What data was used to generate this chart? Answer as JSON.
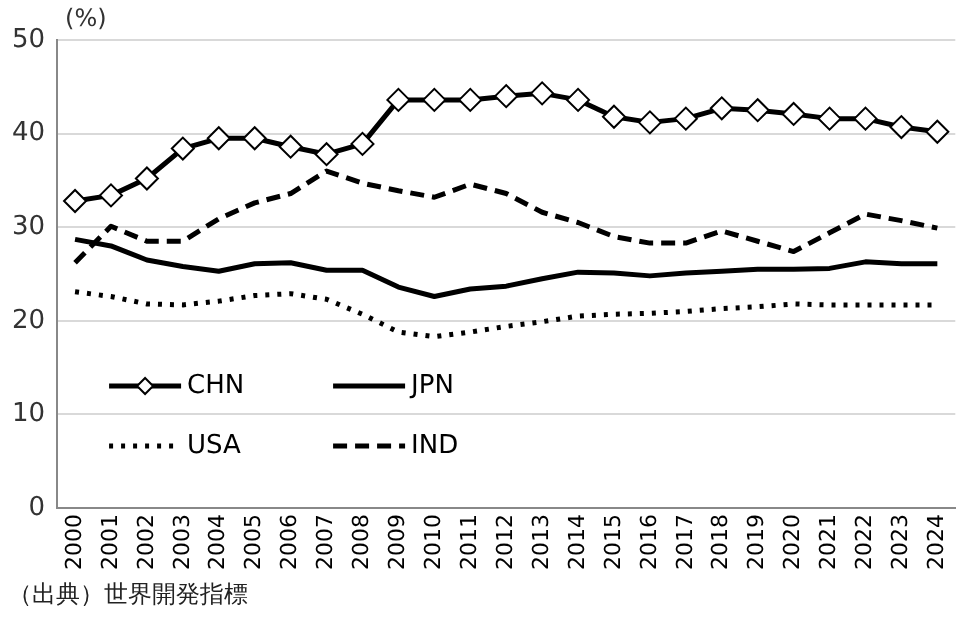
{
  "chart_data": {
    "type": "line",
    "ylabel": "(%)",
    "annotations": [
      "（出典）世界開発指標"
    ],
    "categories": [
      "2000",
      "2001",
      "2002",
      "2003",
      "2004",
      "2005",
      "2006",
      "2007",
      "2008",
      "2009",
      "2010",
      "2011",
      "2012",
      "2013",
      "2014",
      "2015",
      "2016",
      "2017",
      "2018",
      "2019",
      "2020",
      "2021",
      "2022",
      "2023",
      "2024"
    ],
    "ylim": [
      0,
      50
    ],
    "yticks": [
      0,
      10,
      20,
      30,
      40,
      50
    ],
    "grid": "y",
    "legend": "bottom left",
    "series": [
      {
        "name": "CHN",
        "color": "#000000",
        "marker": "diamond",
        "line_style": "solid",
        "values": [
          32.8,
          33.4,
          35.2,
          38.4,
          39.5,
          39.5,
          38.6,
          37.8,
          38.9,
          43.6,
          43.6,
          43.6,
          44.0,
          44.3,
          43.6,
          41.8,
          41.2,
          41.6,
          42.7,
          42.5,
          42.1,
          41.6,
          41.6,
          40.7,
          40.2
        ]
      },
      {
        "name": "JPN",
        "color": "#000000",
        "marker": "none",
        "line_style": "solid",
        "values": [
          28.7,
          28.0,
          26.5,
          25.8,
          25.3,
          26.1,
          26.2,
          25.4,
          25.4,
          23.6,
          22.6,
          23.4,
          23.7,
          24.5,
          25.2,
          25.1,
          24.8,
          25.1,
          25.3,
          25.5,
          25.5,
          25.6,
          26.3,
          26.1,
          26.1
        ]
      },
      {
        "name": "USA",
        "color": "#000000",
        "marker": "none",
        "line_style": "dotted",
        "values": [
          23.1,
          22.6,
          21.8,
          21.7,
          22.1,
          22.7,
          22.9,
          22.3,
          20.7,
          18.8,
          18.3,
          18.8,
          19.4,
          19.9,
          20.5,
          20.7,
          20.8,
          21.0,
          21.3,
          21.5,
          21.8,
          21.7,
          21.7,
          21.7,
          21.7
        ]
      },
      {
        "name": "IND",
        "color": "#000000",
        "marker": "none",
        "line_style": "dashed",
        "values": [
          26.2,
          30.1,
          28.5,
          28.5,
          30.9,
          32.6,
          33.6,
          36.0,
          34.7,
          33.9,
          33.2,
          34.6,
          33.6,
          31.6,
          30.5,
          29.0,
          28.3,
          28.3,
          29.6,
          28.5,
          27.4,
          29.4,
          31.4,
          30.7,
          29.9
        ]
      }
    ]
  }
}
